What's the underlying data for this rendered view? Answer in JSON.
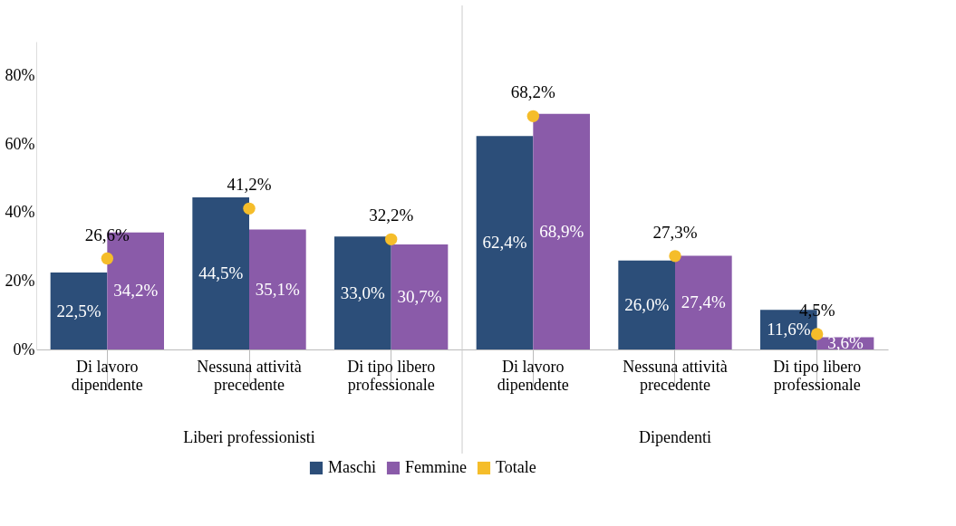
{
  "chart_data": {
    "type": "bar",
    "categories": [
      "Di lavoro dipendente",
      "Nessuna attività precedente",
      "Di tipo libero professionale",
      "Di lavoro dipendente",
      "Nessuna attività precedente",
      "Di tipo libero professionale"
    ],
    "series": [
      {
        "name": "Maschi",
        "color": "#2c4e79",
        "values": [
          22.5,
          44.5,
          33.0,
          62.4,
          26.0,
          11.6
        ],
        "value_labels": [
          "22,5%",
          "44,5%",
          "33,0%",
          "62,4%",
          "26,0%",
          "11,6%"
        ]
      },
      {
        "name": "Femmine",
        "color": "#8a5ba9",
        "values": [
          34.2,
          35.1,
          30.7,
          68.9,
          27.4,
          3.6
        ],
        "value_labels": [
          "34,2%",
          "35,1%",
          "30,7%",
          "68,9%",
          "27,4%",
          "3,6%"
        ]
      },
      {
        "name": "Totale",
        "type": "scatter",
        "color": "#f5bd2a",
        "values": [
          26.6,
          41.2,
          32.2,
          68.2,
          27.3,
          4.5
        ],
        "value_labels": [
          "26,6%",
          "41,2%",
          "32,2%",
          "68,2%",
          "27,3%",
          "4,5%"
        ]
      }
    ],
    "annotations": [
      "Liberi professionisti",
      "Dipendenti"
    ],
    "ylim": [
      0,
      90
    ],
    "yticks": [
      {
        "value": 0,
        "label": "0%"
      },
      {
        "value": 20,
        "label": "20%"
      },
      {
        "value": 40,
        "label": "40%"
      },
      {
        "value": 60,
        "label": "60%"
      },
      {
        "value": 80,
        "label": "80%"
      }
    ],
    "grid": false,
    "legend": "bottom",
    "marker": "circle"
  }
}
